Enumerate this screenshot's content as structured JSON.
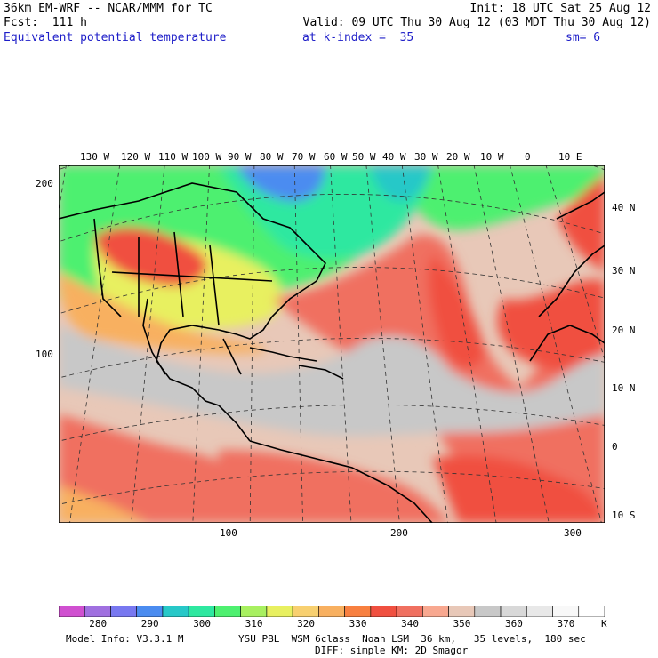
{
  "header": {
    "line1_left": "36km EM-WRF -- NCAR/MMM for TC",
    "line1_right": "Init: 18 UTC Sat 25 Aug 12",
    "line2_left": "Fcst:  111 h",
    "line2_right": "Valid: 09 UTC Thu 30 Aug 12 (03 MDT Thu 30 Aug 12)",
    "field_name": "Equivalent potential temperature",
    "level": "at k-index =  35",
    "smoothing": "sm= 6"
  },
  "map": {
    "top_longitude_labels": [
      "130 W",
      "120 W",
      "110 W",
      "100 W",
      "90 W",
      "80 W",
      "70 W",
      "60 W",
      "50 W",
      "40 W",
      "30 W",
      "20 W",
      "10 W",
      "0",
      "10 E"
    ],
    "right_latitude_labels": [
      "40 N",
      "30 N",
      "20 N",
      "10 N",
      "0",
      "10 S"
    ],
    "left_grid_labels": [
      "200",
      "100"
    ],
    "bottom_grid_labels": [
      "100",
      "200",
      "300"
    ]
  },
  "colorbar": {
    "labels": [
      "280",
      "290",
      "300",
      "310",
      "320",
      "330",
      "340",
      "350",
      "360",
      "370"
    ],
    "unit": "K",
    "colors": [
      "#d050d0",
      "#a070e0",
      "#7878f0",
      "#4b8cf0",
      "#27c8c8",
      "#2ee8a0",
      "#4ef070",
      "#a8f060",
      "#e8f060",
      "#f8d070",
      "#f8b060",
      "#f88040",
      "#f05040",
      "#f07060",
      "#f8a890",
      "#e8c8b8",
      "#c8c8c8",
      "#d8d8d8",
      "#e8e8e8",
      "#f8f8f8",
      "#ffffff"
    ]
  },
  "footer": {
    "model_info": "Model Info: V3.3.1 M",
    "physics_line1": "YSU PBL  WSM 6class  Noah LSM  36 km,   35 levels,  180 sec",
    "physics_line2": "DIFF: simple KM: 2D Smagor"
  }
}
